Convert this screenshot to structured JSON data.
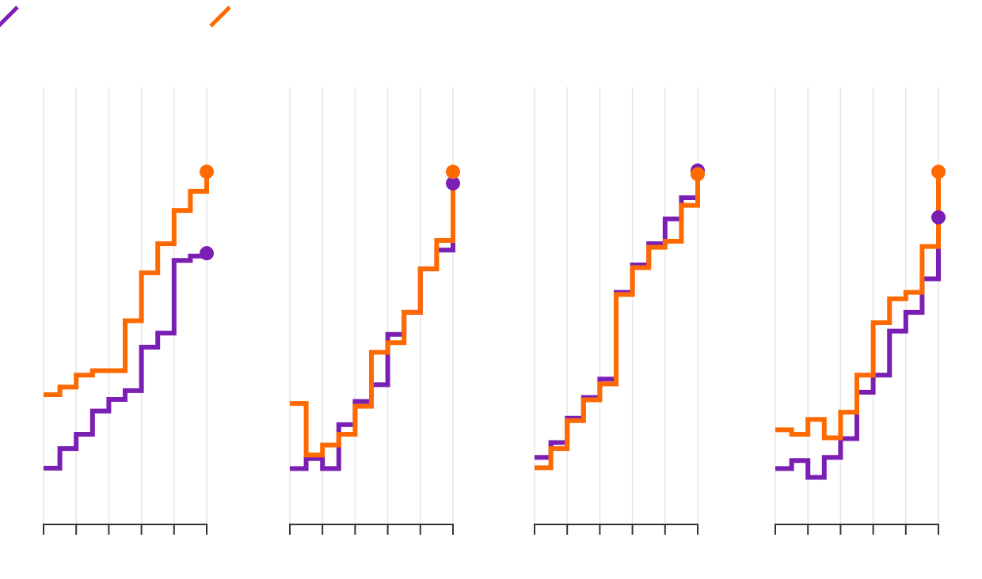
{
  "chart_data": {
    "type": "line",
    "step": true,
    "colors": {
      "series_a": "#7b1fb4",
      "series_b": "#ff6a00"
    },
    "legend": [
      {
        "name": "",
        "color": "#7b1fb4"
      },
      {
        "name": "",
        "color": "#ff6a00"
      }
    ],
    "x": [
      0,
      0.5,
      1,
      1.5,
      2,
      2.5,
      3,
      3.5,
      4,
      4.5,
      5
    ],
    "xlim": [
      0,
      5
    ],
    "ylim": [
      0,
      100
    ],
    "grid": true,
    "panels": [
      {
        "series": [
          {
            "name": "series_a",
            "color": "#7b1fb4",
            "values": [
              12.5,
              17.4,
              21,
              26.8,
              29.7,
              31.9,
              42.8,
              46.3,
              64.5,
              65.6,
              66.3
            ],
            "end_marker": true
          },
          {
            "name": "series_b",
            "color": "#ff6a00",
            "values": [
              30.9,
              32.8,
              35.8,
              36.9,
              36.9,
              49.4,
              61.4,
              68.7,
              77,
              81.8,
              86.7
            ],
            "end_marker": true
          }
        ]
      },
      {
        "series": [
          {
            "name": "series_a",
            "color": "#7b1fb4",
            "values": [
              12.4,
              14.9,
              12.4,
              23.4,
              29.2,
              33.4,
              46,
              51.5,
              62.4,
              67.1,
              83.8
            ],
            "end_marker": true
          },
          {
            "name": "series_b",
            "color": "#ff6a00",
            "values": [
              28.7,
              15.8,
              18.3,
              21,
              28,
              41.5,
              43.9,
              51.5,
              62.4,
              69.5,
              86.7
            ],
            "end_marker": true
          }
        ]
      },
      {
        "series": [
          {
            "name": "series_a",
            "color": "#7b1fb4",
            "values": [
              15.2,
              18.9,
              25,
              30.2,
              34.8,
              56.5,
              63.4,
              68.7,
              74.9,
              80.2,
              87
            ],
            "end_marker": true
          },
          {
            "name": "series_b",
            "color": "#ff6a00",
            "values": [
              12.6,
              17.4,
              24.4,
              29.6,
              33.6,
              56,
              62.7,
              67.8,
              69.3,
              78.3,
              86.1
            ],
            "end_marker": true
          }
        ]
      },
      {
        "series": [
          {
            "name": "series_a",
            "color": "#7b1fb4",
            "values": [
              12.4,
              14.4,
              10.2,
              15.2,
              19.9,
              31.5,
              35.8,
              46.8,
              51.5,
              59.9,
              75.3
            ],
            "end_marker": true
          },
          {
            "name": "series_b",
            "color": "#ff6a00",
            "values": [
              22.1,
              21,
              24.7,
              20.1,
              26.5,
              35.8,
              48.9,
              54.9,
              56.5,
              68,
              86.7
            ],
            "end_marker": true
          }
        ]
      }
    ]
  }
}
